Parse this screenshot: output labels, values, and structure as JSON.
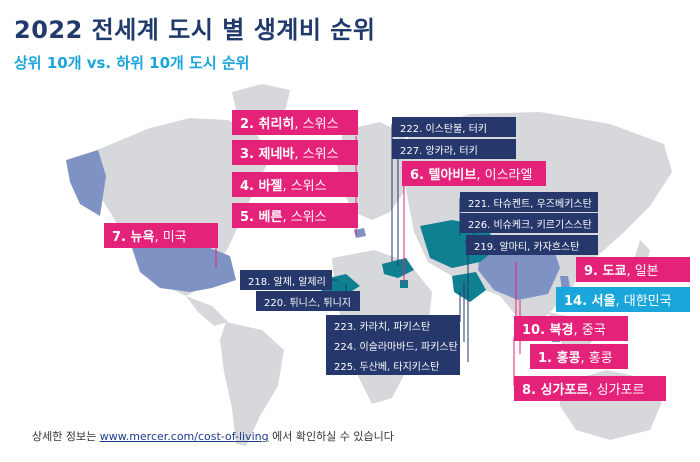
{
  "title": "2022 전세계 도시 별 생계비 순위",
  "subtitle": "상위 10개 vs. 하위 10개 도시 순위",
  "top_cities": [
    {
      "rank": "2. 취리히",
      "country": ", 스위스"
    },
    {
      "rank": "3. 제네바",
      "country": ", 스위스"
    },
    {
      "rank": "4. 바젤",
      "country": ", 스위스"
    },
    {
      "rank": "5. 베른",
      "country": ", 스위스"
    },
    {
      "rank": "6. 텔아비브",
      "country": ", 이스라엘"
    },
    {
      "rank": "7. 뉴욕",
      "country": ", 미국"
    },
    {
      "rank": "9. 도쿄",
      "country": ", 일본"
    },
    {
      "rank": "14. 서울",
      "country": ", 대한민국"
    },
    {
      "rank": "10. 북경",
      "country": ", 중국"
    },
    {
      "rank": "1. 홍콩",
      "country": ", 홍콩"
    },
    {
      "rank": "8. 싱가포르",
      "country": ", 싱가포르"
    }
  ],
  "bottom_cities": [
    "222. 이스탄불, 터키",
    "227. 앙카라, 터키",
    "221. 타슈켄트, 우즈베키스탄",
    "226. 비슈케크, 키르기스스탄",
    "219. 알마티, 카자흐스탄",
    "218. 알제, 알제리",
    "220. 튀니스, 튀니지",
    "223. 카라치, 파키스탄",
    "224. 이슬라마바드, 파키스탄",
    "225. 두산베, 타지키스탄"
  ],
  "footer": {
    "prefix": "상세한 정보는 ",
    "link": "www.mercer.com/cost-of-living",
    "suffix": " 에서 확인하실 수 있습니다"
  },
  "colors": {
    "top": "#e4227a",
    "seoul": "#1aa6da",
    "bottom": "#25376b",
    "teal_region": "#0f7f92",
    "land": "#d6d8db",
    "highlight_land": "#7f92c4"
  }
}
